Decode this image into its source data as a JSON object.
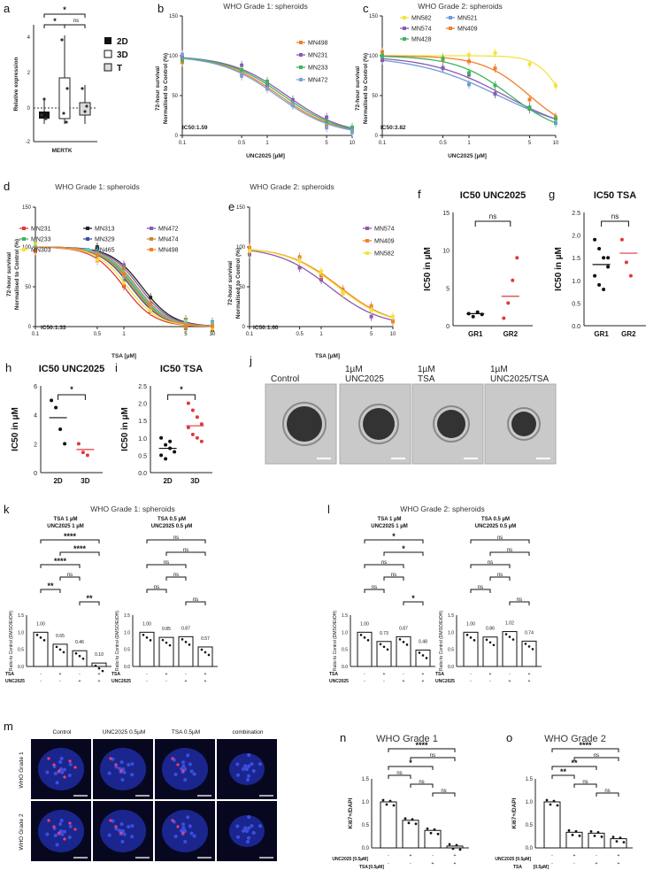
{
  "panels": {
    "a": {
      "letter": "a",
      "ylabel": "Relative expression",
      "xlabel": "MERTK",
      "legend": [
        "2D",
        "3D",
        "T"
      ],
      "sig": [
        "*",
        "*",
        "ns"
      ],
      "ticks": [
        "4",
        "2",
        "0",
        "-2"
      ]
    },
    "b": {
      "letter": "b",
      "title": "WHO Grade 1: spheroids",
      "ylabel1": "72-hour survival",
      "ylabel2": "Normalised to Control (%)",
      "xlabel": "UNC2025 [µM]",
      "ic50": "IC50:1.59",
      "series": [
        "MN498",
        "MN231",
        "MN233",
        "MN472"
      ],
      "colors": [
        "#f07f2a",
        "#8a5bb0",
        "#3fb45a",
        "#7fa0d8"
      ]
    },
    "c": {
      "letter": "c",
      "title": "WHO Grade 2: spheroids",
      "xlabel": "UNC2025 [µM]",
      "ic50": "IC50:3.82",
      "series": [
        "MN582",
        "MN521",
        "MN574",
        "MN409",
        "MN428"
      ],
      "colors": [
        "#f2e340",
        "#6d9bd6",
        "#8a5bb0",
        "#f07f2a",
        "#3fb45a"
      ]
    },
    "d": {
      "letter": "d",
      "title": "WHO Grade 1: spheroids",
      "xlabel": "TSA [µM]",
      "ic50": "IC50:1.33",
      "series": [
        "MN231",
        "MN313",
        "MN472",
        "MN233",
        "MN329",
        "MN474",
        "MN303",
        "MN465",
        "MN498"
      ],
      "colors": [
        "#e03a3a",
        "#222222",
        "#8a5bb0",
        "#3fb45a",
        "#3a4fa8",
        "#c58a2a",
        "#f2e340",
        "#57c8c8",
        "#f07f2a"
      ]
    },
    "e": {
      "letter": "e",
      "title": "WHO Grade 2: spheroids",
      "xlabel": "TSA [µM]",
      "ic50": "IC50:1.60",
      "series": [
        "MN574",
        "MN409",
        "MN582"
      ],
      "colors": [
        "#8a5bb0",
        "#f07f2a",
        "#f2e340"
      ]
    },
    "f": {
      "letter": "f",
      "title": "IC50 UNC2025",
      "ylabel": "IC50 in µM",
      "x": [
        "GR1",
        "GR2"
      ],
      "sig": "ns",
      "ticks": [
        "15",
        "10",
        "5",
        "0"
      ]
    },
    "g": {
      "letter": "g",
      "title": "IC50 TSA",
      "ylabel": "IC50 in µM",
      "x": [
        "GR1",
        "GR2"
      ],
      "sig": "ns",
      "ticks": [
        "2.5",
        "2.0",
        "1.5",
        "1.0",
        "0.5",
        "0.0"
      ]
    },
    "h": {
      "letter": "h",
      "title": "IC50 UNC2025",
      "ylabel": "IC50 in µM",
      "x": [
        "2D",
        "3D"
      ],
      "sig": "*",
      "ticks": [
        "6",
        "4",
        "2",
        "0"
      ]
    },
    "i": {
      "letter": "i",
      "title": "IC50 TSA",
      "ylabel": "IC50 in µM",
      "x": [
        "2D",
        "3D"
      ],
      "sig": "*",
      "ticks": [
        "2.5",
        "2.0",
        "1.5",
        "1.0",
        "0.5",
        "0.0"
      ]
    },
    "j": {
      "letter": "j",
      "labels": [
        "Control",
        "1µM UNC2025",
        "1µM TSA",
        "1µM UNC2025/TSA"
      ]
    },
    "k": {
      "letter": "k",
      "title": "WHO Grade 1: spheroids",
      "dose1": "TSA 1 µM / UNC2025 1 µM",
      "dose2": "TSA 0.5 µM / UNC2025 0.5 µM",
      "values1": [
        "1.00",
        "0.65",
        "0.46",
        "0.10"
      ],
      "values2": [
        "1.00",
        "0.85",
        "0.87",
        "0.57"
      ]
    },
    "l": {
      "letter": "l",
      "title": "WHO Grade 2: spheroids",
      "values1": [
        "1.00",
        "0.73",
        "0.87",
        "0.48"
      ],
      "values2": [
        "1.00",
        "0.86",
        "1.02",
        "0.74"
      ]
    },
    "m": {
      "letter": "m",
      "cols": [
        "Control",
        "UNC2025 0.5µM",
        "TSA 0.5µM",
        "combination"
      ],
      "rows": [
        "WHO Grade 1",
        "WHO Grade 2"
      ]
    },
    "n": {
      "letter": "n",
      "title": "WHO Grade 1",
      "ylabel": "Ki67+/DAPI",
      "sig": [
        "****",
        "ns",
        "*",
        "ns",
        "ns",
        "ns"
      ]
    },
    "o": {
      "letter": "o",
      "title": "WHO Grade 2",
      "ylabel": "Ki67+/DAPI",
      "sig": [
        "****",
        "ns",
        "**",
        "**",
        "ns",
        "ns"
      ]
    }
  },
  "common": {
    "ratio_label": "Ratio to Control (DMSO/EtOH)",
    "row_tsa": "TSA",
    "row_unc": "UNC2025",
    "row_unc_n": "UNC2025 [0.5µM]",
    "row_tsa_n": "[0.5µM]",
    "ylab72": "72-hour survival",
    "ylabnorm": "Normalised to Control (%)"
  }
}
